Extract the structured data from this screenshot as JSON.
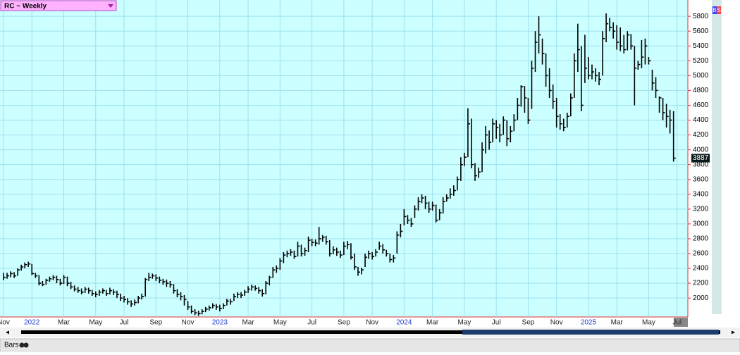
{
  "chart_data": {
    "type": "ohlc",
    "title": "RC ~ Weekly",
    "color": "#000000",
    "background": "#ccffff",
    "grid": true,
    "categories": [
      "Nov",
      null,
      null,
      null,
      null,
      null,
      null,
      null,
      "2022",
      null,
      null,
      null,
      null,
      null,
      null,
      null,
      null,
      "Mar",
      null,
      null,
      null,
      null,
      null,
      null,
      null,
      null,
      "May",
      null,
      null,
      null,
      null,
      null,
      null,
      null,
      "Jul",
      null,
      null,
      null,
      null,
      null,
      null,
      null,
      null,
      "Sep",
      null,
      null,
      null,
      null,
      null,
      null,
      null,
      null,
      "Nov",
      null,
      null,
      null,
      null,
      null,
      null,
      null,
      null,
      "2023",
      null,
      null,
      null,
      null,
      null,
      null,
      null,
      "Mar",
      null,
      null,
      null,
      null,
      null,
      null,
      null,
      null,
      "May",
      null,
      null,
      null,
      null,
      null,
      null,
      null,
      null,
      "Jul",
      null,
      null,
      null,
      null,
      null,
      null,
      null,
      null,
      "Sep",
      null,
      null,
      null,
      null,
      null,
      null,
      null,
      "Nov",
      null,
      null,
      null,
      null,
      null,
      null,
      null,
      null,
      "2024",
      null,
      null,
      null,
      null,
      null,
      null,
      null,
      "Mar",
      null,
      null,
      null,
      null,
      null,
      null,
      null,
      null,
      "May",
      null,
      null,
      null,
      null,
      null,
      null,
      null,
      null,
      "Jul",
      null,
      null,
      null,
      null,
      null,
      null,
      null,
      null,
      "Sep",
      null,
      null,
      null,
      null,
      null,
      null,
      null,
      "Nov",
      null,
      null,
      null,
      null,
      null,
      null,
      null,
      null,
      "2025",
      null,
      null,
      null,
      null,
      null,
      null,
      null,
      "Mar",
      null,
      null,
      null,
      null,
      null,
      null,
      null,
      null,
      "May",
      null,
      null,
      null,
      null,
      null,
      null,
      null,
      "Jul"
    ],
    "high": [
      2340,
      2340,
      2360,
      2350,
      2400,
      2450,
      2480,
      2490,
      2460,
      2340,
      2310,
      2230,
      2260,
      2290,
      2310,
      2300,
      2260,
      2310,
      2290,
      2220,
      2170,
      2150,
      2130,
      2150,
      2140,
      2110,
      2090,
      2110,
      2130,
      2110,
      2140,
      2120,
      2100,
      2060,
      2030,
      2000,
      1970,
      1980,
      2030,
      2060,
      2270,
      2340,
      2330,
      2320,
      2290,
      2260,
      2250,
      2230,
      2190,
      2120,
      2080,
      2040,
      1960,
      1900,
      1850,
      1830,
      1850,
      1880,
      1900,
      1930,
      1920,
      1910,
      1930,
      1990,
      1990,
      2060,
      2080,
      2080,
      2110,
      2160,
      2180,
      2170,
      2150,
      2120,
      2230,
      2300,
      2420,
      2440,
      2540,
      2620,
      2640,
      2660,
      2640,
      2760,
      2720,
      2680,
      2830,
      2800,
      2790,
      2960,
      2850,
      2840,
      2780,
      2700,
      2680,
      2640,
      2760,
      2770,
      2740,
      2600,
      2420,
      2410,
      2600,
      2640,
      2620,
      2660,
      2760,
      2730,
      2650,
      2600,
      2580,
      2900,
      3000,
      3200,
      3120,
      3080,
      3250,
      3360,
      3400,
      3380,
      3300,
      3300,
      3260,
      3200,
      3360,
      3400,
      3480,
      3520,
      3640,
      3900,
      3960,
      4560,
      4420,
      3820,
      3760,
      4100,
      4320,
      4260,
      4420,
      4400,
      4350,
      4450,
      4400,
      4320,
      4480,
      4700,
      4870,
      4860,
      4700,
      5200,
      5600,
      5800,
      5500,
      5300,
      5100,
      4880,
      4700,
      4480,
      4420,
      4500,
      4760,
      5300,
      5700,
      5400,
      5550,
      5250,
      5150,
      5100,
      5050,
      5600,
      5840,
      5780,
      5720,
      5680,
      5650,
      5550,
      5600,
      5560,
      5400,
      5200,
      5480,
      5500,
      5250,
      5080,
      4980,
      4720,
      4700,
      4620,
      4540,
      4520,
      null
    ],
    "low": [
      2240,
      2260,
      2280,
      2270,
      2300,
      2370,
      2400,
      2420,
      2310,
      2270,
      2170,
      2160,
      2180,
      2220,
      2240,
      2200,
      2170,
      2190,
      2160,
      2120,
      2090,
      2070,
      2050,
      2070,
      2060,
      2030,
      2010,
      2030,
      2060,
      2030,
      2050,
      2040,
      2000,
      1960,
      1940,
      1910,
      1880,
      1900,
      1930,
      1980,
      2020,
      2230,
      2260,
      2230,
      2200,
      2180,
      2150,
      2140,
      2060,
      2010,
      1970,
      1900,
      1840,
      1790,
      1770,
      1760,
      1780,
      1810,
      1830,
      1860,
      1840,
      1820,
      1850,
      1900,
      1910,
      1960,
      2000,
      2000,
      2030,
      2070,
      2100,
      2100,
      2060,
      2020,
      2050,
      2170,
      2270,
      2340,
      2380,
      2470,
      2550,
      2570,
      2530,
      2560,
      2560,
      2570,
      2620,
      2700,
      2700,
      2720,
      2760,
      2720,
      2560,
      2590,
      2570,
      2540,
      2580,
      2660,
      2520,
      2380,
      2300,
      2320,
      2420,
      2530,
      2520,
      2560,
      2650,
      2600,
      2560,
      2480,
      2480,
      2600,
      2820,
      2980,
      3000,
      2960,
      3080,
      3180,
      3280,
      3200,
      3150,
      3180,
      3020,
      3050,
      3140,
      3300,
      3340,
      3380,
      3450,
      3580,
      3780,
      3900,
      3750,
      3580,
      3620,
      3700,
      3950,
      4000,
      4100,
      4150,
      4100,
      4200,
      4050,
      4100,
      4250,
      4400,
      4580,
      4500,
      4350,
      4550,
      5050,
      5300,
      5150,
      4850,
      4700,
      4550,
      4300,
      4270,
      4250,
      4300,
      4450,
      4700,
      5050,
      4520,
      4900,
      4950,
      4950,
      4920,
      4870,
      5000,
      5450,
      5600,
      5500,
      5350,
      5330,
      5300,
      5340,
      5350,
      4600,
      5080,
      5100,
      5150,
      5150,
      4800,
      4700,
      4500,
      4400,
      4300,
      4220,
      3840,
      null
    ],
    "close": [
      2280,
      2300,
      2330,
      2300,
      2380,
      2420,
      2450,
      2460,
      2330,
      2300,
      2200,
      2180,
      2240,
      2260,
      2280,
      2250,
      2200,
      2280,
      2200,
      2150,
      2120,
      2100,
      2080,
      2120,
      2100,
      2060,
      2050,
      2080,
      2100,
      2060,
      2100,
      2080,
      2050,
      2000,
      1980,
      1950,
      1920,
      1940,
      2000,
      2020,
      2250,
      2280,
      2300,
      2270,
      2240,
      2220,
      2200,
      2180,
      2100,
      2050,
      2020,
      1980,
      1880,
      1820,
      1800,
      1790,
      1820,
      1850,
      1870,
      1900,
      1880,
      1860,
      1900,
      1960,
      1950,
      2020,
      2050,
      2040,
      2080,
      2120,
      2150,
      2130,
      2100,
      2060,
      2200,
      2280,
      2380,
      2400,
      2500,
      2580,
      2600,
      2620,
      2560,
      2700,
      2600,
      2640,
      2780,
      2750,
      2740,
      2800,
      2820,
      2760,
      2600,
      2650,
      2620,
      2580,
      2700,
      2720,
      2550,
      2420,
      2350,
      2380,
      2550,
      2600,
      2560,
      2620,
      2700,
      2650,
      2600,
      2520,
      2540,
      2850,
      2900,
      3100,
      3050,
      3000,
      3200,
      3300,
      3350,
      3280,
      3200,
      3250,
      3050,
      3150,
      3300,
      3350,
      3400,
      3450,
      3600,
      3800,
      3900,
      4350,
      3800,
      3650,
      3700,
      4000,
      4200,
      4100,
      4350,
      4300,
      4200,
      4400,
      4150,
      4250,
      4400,
      4600,
      4850,
      4700,
      4400,
      5100,
      5450,
      5550,
      5300,
      5000,
      4800,
      4650,
      4450,
      4350,
      4300,
      4450,
      4700,
      5200,
      5350,
      4600,
      5100,
      5000,
      5050,
      5000,
      4950,
      5500,
      5700,
      5650,
      5600,
      5450,
      5400,
      5350,
      5550,
      5400,
      5100,
      5150,
      5250,
      5400,
      5200,
      4900,
      4800,
      4700,
      4500,
      4450,
      4400,
      3887,
      null
    ],
    "ylim": [
      1745,
      6020
    ],
    "yticks": [
      2000,
      2200,
      2400,
      2600,
      2800,
      3000,
      3200,
      3400,
      3600,
      3800,
      4000,
      4200,
      4400,
      4600,
      4800,
      5000,
      5200,
      5400,
      5600,
      5800
    ]
  },
  "ui": {
    "buttons": [
      "B",
      "S"
    ],
    "status": "Bars"
  }
}
